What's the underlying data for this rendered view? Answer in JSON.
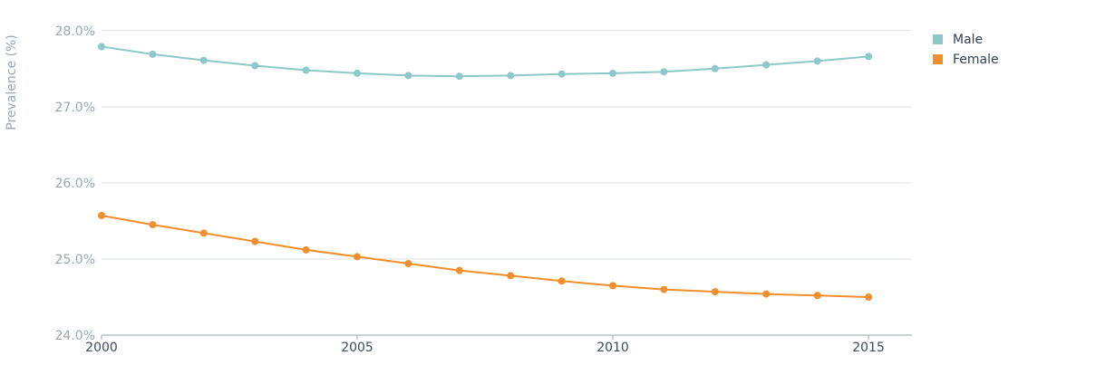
{
  "chart_data": {
    "type": "line",
    "ylabel": "Prevalence (%)",
    "xlabel": "",
    "x": [
      2000,
      2001,
      2002,
      2003,
      2004,
      2005,
      2006,
      2007,
      2008,
      2009,
      2010,
      2011,
      2012,
      2013,
      2014,
      2015
    ],
    "xlim": [
      2000,
      2015.85
    ],
    "xticks": [
      2000,
      2005,
      2010,
      2015
    ],
    "ylim": [
      24.0,
      28.2
    ],
    "yticks": [
      24.0,
      25.0,
      26.0,
      27.0,
      28.0
    ],
    "ytick_labels": [
      "24.0%",
      "25.0%",
      "26.0%",
      "27.0%",
      "28.0%"
    ],
    "grid": true,
    "legend_position": "top-right",
    "series": [
      {
        "name": "Male",
        "color": "#8cc9c8",
        "values": [
          27.79,
          27.69,
          27.61,
          27.54,
          27.48,
          27.44,
          27.41,
          27.4,
          27.41,
          27.43,
          27.44,
          27.46,
          27.5,
          27.55,
          27.6,
          27.66
        ]
      },
      {
        "name": "Female",
        "color": "#f28e2b",
        "values": [
          25.57,
          25.45,
          25.34,
          25.23,
          25.12,
          25.03,
          24.94,
          24.85,
          24.78,
          24.71,
          24.65,
          24.6,
          24.57,
          24.54,
          24.52,
          24.5
        ]
      }
    ]
  }
}
